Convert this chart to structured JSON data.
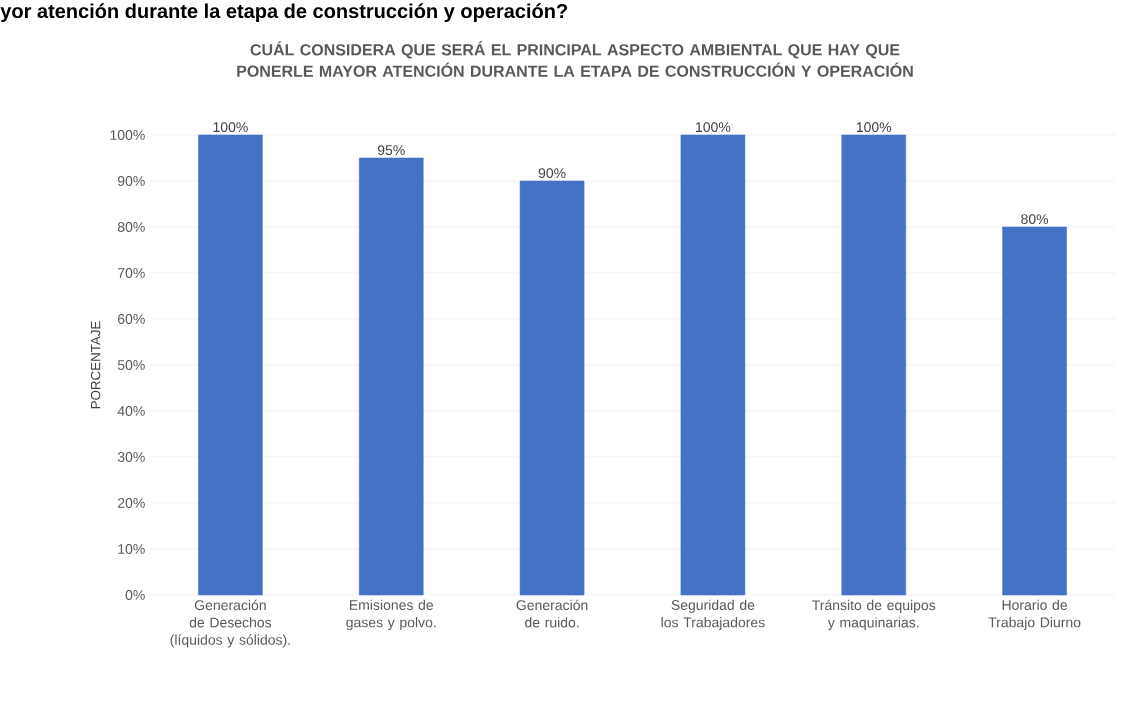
{
  "chart_data": {
    "type": "bar",
    "title": "CUÁL CONSIDERA QUE SERÁ EL PRINCIPAL ASPECTO AMBIENTAL QUE HAY QUE PONERLE MAYOR ATENCIÓN DURANTE LA ETAPA DE CONSTRUCCIÓN Y OPERACIÓN",
    "ylabel": "PORCENTAJE",
    "annotations": [
      "yor atención durante la etapa de construcción y operación?"
    ],
    "categories": [
      "Generación de Desechos (líquidos y sólidos).",
      "Emisiones de gases y polvo.",
      "Generación de ruido.",
      "Seguridad de los Trabajadores",
      "Tránsito de equipos y maquinarias.",
      "Horario de Trabajo Diurno"
    ],
    "values": [
      100,
      95,
      90,
      100,
      100,
      80
    ],
    "value_labels": [
      "100%",
      "95%",
      "90%",
      "100%",
      "100%",
      "80%"
    ],
    "color": "#4472c4",
    "ylim": [
      0,
      100
    ],
    "yticks": [
      {
        "value": 0,
        "label": "0%"
      },
      {
        "value": 10,
        "label": "10%"
      },
      {
        "value": 20,
        "label": "20%"
      },
      {
        "value": 30,
        "label": "30%"
      },
      {
        "value": 40,
        "label": "40%"
      },
      {
        "value": 50,
        "label": "50%"
      },
      {
        "value": 60,
        "label": "60%"
      },
      {
        "value": 70,
        "label": "70%"
      },
      {
        "value": 80,
        "label": "80%"
      },
      {
        "value": 90,
        "label": "90%"
      },
      {
        "value": 100,
        "label": "100%"
      }
    ],
    "grid": "y"
  }
}
